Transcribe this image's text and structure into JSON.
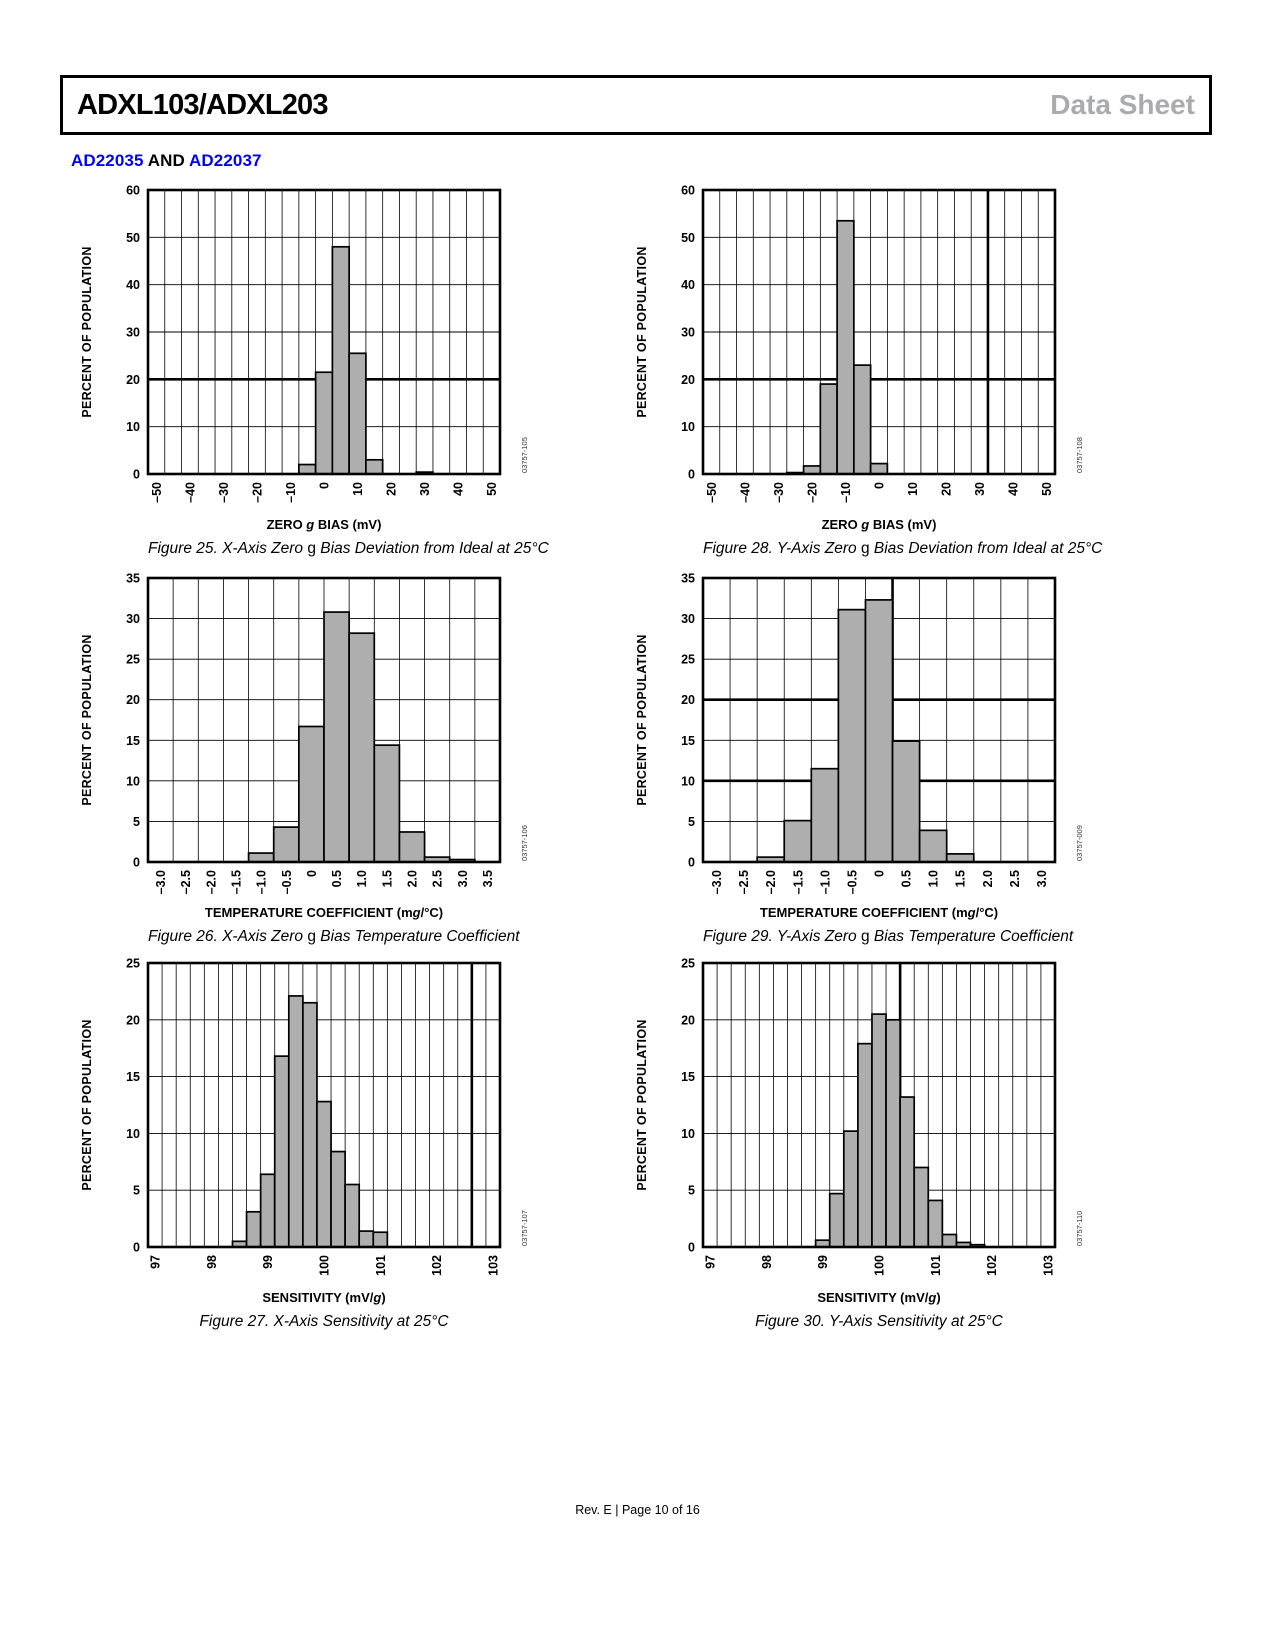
{
  "header": {
    "title": "ADXL103/ADXL203",
    "doc_type": "Data Sheet",
    "doc_type_color": "#a9abae"
  },
  "section_heading": {
    "link1": "AD22035",
    "and": " AND ",
    "link2": "AD22037",
    "link_color": "#0202ee"
  },
  "footer": {
    "text": "Rev. E | Page 10 of 16"
  },
  "chart_defaults": {
    "bar_fill": "#aeaeae",
    "bar_stroke": "#000000",
    "grid_color": "#000000",
    "ylabel": "PERCENT OF POPULATION"
  },
  "chart_data": [
    {
      "id": "figure-25",
      "type": "bar",
      "code": "03757-105",
      "ylabel": "PERCENT OF POPULATION",
      "xlabel_segments": [
        {
          "t": "ZERO "
        },
        {
          "t": "g",
          "i": true
        },
        {
          "t": " BIAS (mV)"
        }
      ],
      "caption_segments": [
        {
          "t": "Figure 25. X-Axis Zero ",
          "i": true
        },
        {
          "t": "g"
        },
        {
          "t": " Bias Deviation from Ideal at 25°C",
          "i": true
        }
      ],
      "xmin": -52.5,
      "xmax": 52.5,
      "xgrid": 5,
      "ymin": 0,
      "ymax": 60,
      "ystep": 10,
      "x_ticks": [
        {
          "v": -50,
          "label": "–50"
        },
        {
          "v": -40,
          "label": "–40"
        },
        {
          "v": -30,
          "label": "–30"
        },
        {
          "v": -20,
          "label": "–20"
        },
        {
          "v": -10,
          "label": "–10"
        },
        {
          "v": 0,
          "label": "0"
        },
        {
          "v": 10,
          "label": "10"
        },
        {
          "v": 20,
          "label": "20"
        },
        {
          "v": 30,
          "label": "30"
        },
        {
          "v": 40,
          "label": "40"
        },
        {
          "v": 50,
          "label": "50"
        }
      ],
      "bold_h": [
        20
      ],
      "bold_v": [],
      "bin_width": 5,
      "bars": [
        {
          "x": -5,
          "y": 2.0
        },
        {
          "x": 0,
          "y": 21.5
        },
        {
          "x": 5,
          "y": 48.0
        },
        {
          "x": 10,
          "y": 25.5
        },
        {
          "x": 15,
          "y": 3.0
        },
        {
          "x": 30,
          "y": 0.4
        }
      ]
    },
    {
      "id": "figure-28",
      "type": "bar",
      "code": "03757-108",
      "ylabel": "PERCENT OF POPULATION",
      "xlabel_segments": [
        {
          "t": "ZERO "
        },
        {
          "t": "g",
          "i": true
        },
        {
          "t": " BIAS (mV)"
        }
      ],
      "caption_segments": [
        {
          "t": "Figure 28. Y-Axis Zero ",
          "i": true
        },
        {
          "t": "g"
        },
        {
          "t": " Bias Deviation from Ideal at 25°C",
          "i": true
        }
      ],
      "xmin": -52.5,
      "xmax": 52.5,
      "xgrid": 5,
      "ymin": 0,
      "ymax": 60,
      "ystep": 10,
      "x_ticks": [
        {
          "v": -50,
          "label": "–50"
        },
        {
          "v": -40,
          "label": "–40"
        },
        {
          "v": -30,
          "label": "–30"
        },
        {
          "v": -20,
          "label": "–20"
        },
        {
          "v": -10,
          "label": "–10"
        },
        {
          "v": 0,
          "label": "0"
        },
        {
          "v": 10,
          "label": "10"
        },
        {
          "v": 20,
          "label": "20"
        },
        {
          "v": 30,
          "label": "30"
        },
        {
          "v": 40,
          "label": "40"
        },
        {
          "v": 50,
          "label": "50"
        }
      ],
      "bold_h": [
        20
      ],
      "bold_v": [
        32.5
      ],
      "bin_width": 5,
      "bars": [
        {
          "x": -25,
          "y": 0.3
        },
        {
          "x": -20,
          "y": 1.7
        },
        {
          "x": -15,
          "y": 19.0
        },
        {
          "x": -10,
          "y": 53.5
        },
        {
          "x": -5,
          "y": 23.0
        },
        {
          "x": 0,
          "y": 2.2
        }
      ]
    },
    {
      "id": "figure-26",
      "type": "bar",
      "code": "03757-106",
      "ylabel": "PERCENT OF POPULATION",
      "xlabel_segments": [
        {
          "t": "TEMPERATURE COEFFICIENT (m"
        },
        {
          "t": "g",
          "i": true
        },
        {
          "t": "/°C)"
        }
      ],
      "caption_segments": [
        {
          "t": "Figure 26. X-Axis Zero ",
          "i": true
        },
        {
          "t": "g"
        },
        {
          "t": " Bias Temperature Coefficient",
          "i": true
        }
      ],
      "xmin": -3.25,
      "xmax": 3.75,
      "xgrid": 0.5,
      "ymin": 0,
      "ymax": 35,
      "ystep": 5,
      "x_ticks": [
        {
          "v": -3.0,
          "label": "–3.0"
        },
        {
          "v": -2.5,
          "label": "–2.5"
        },
        {
          "v": -2.0,
          "label": "–2.0"
        },
        {
          "v": -1.5,
          "label": "–1.5"
        },
        {
          "v": -1.0,
          "label": "–1.0"
        },
        {
          "v": -0.5,
          "label": "–0.5"
        },
        {
          "v": 0,
          "label": "0"
        },
        {
          "v": 0.5,
          "label": "0.5"
        },
        {
          "v": 1.0,
          "label": "1.0"
        },
        {
          "v": 1.5,
          "label": "1.5"
        },
        {
          "v": 2.0,
          "label": "2.0"
        },
        {
          "v": 2.5,
          "label": "2.5"
        },
        {
          "v": 3.0,
          "label": "3.0"
        },
        {
          "v": 3.5,
          "label": "3.5"
        }
      ],
      "bold_h": [],
      "bold_v": [],
      "bin_width": 0.5,
      "bars": [
        {
          "x": -1.0,
          "y": 1.1
        },
        {
          "x": -0.5,
          "y": 4.3
        },
        {
          "x": 0,
          "y": 16.7
        },
        {
          "x": 0.5,
          "y": 30.8
        },
        {
          "x": 1.0,
          "y": 28.2
        },
        {
          "x": 1.5,
          "y": 14.4
        },
        {
          "x": 2.0,
          "y": 3.7
        },
        {
          "x": 2.5,
          "y": 0.6
        },
        {
          "x": 3.0,
          "y": 0.3
        }
      ]
    },
    {
      "id": "figure-29",
      "type": "bar",
      "code": "03757-009",
      "ylabel": "PERCENT OF POPULATION",
      "xlabel_segments": [
        {
          "t": "TEMPERATURE COEFFICIENT (m"
        },
        {
          "t": "g",
          "i": true
        },
        {
          "t": "/°C)"
        }
      ],
      "caption_segments": [
        {
          "t": "Figure 29. Y-Axis Zero ",
          "i": true
        },
        {
          "t": "g"
        },
        {
          "t": " Bias Temperature Coefficient",
          "i": true
        }
      ],
      "xmin": -3.25,
      "xmax": 3.25,
      "xgrid": 0.5,
      "ymin": 0,
      "ymax": 35,
      "ystep": 5,
      "x_ticks": [
        {
          "v": -3.0,
          "label": "–3.0"
        },
        {
          "v": -2.5,
          "label": "–2.5"
        },
        {
          "v": -2.0,
          "label": "–2.0"
        },
        {
          "v": -1.5,
          "label": "–1.5"
        },
        {
          "v": -1.0,
          "label": "–1.0"
        },
        {
          "v": -0.5,
          "label": "–0.5"
        },
        {
          "v": 0,
          "label": "0"
        },
        {
          "v": 0.5,
          "label": "0.5"
        },
        {
          "v": 1.0,
          "label": "1.0"
        },
        {
          "v": 1.5,
          "label": "1.5"
        },
        {
          "v": 2.0,
          "label": "2.0"
        },
        {
          "v": 2.5,
          "label": "2.5"
        },
        {
          "v": 3.0,
          "label": "3.0"
        }
      ],
      "bold_h": [
        10,
        20
      ],
      "bold_v": [
        0.25
      ],
      "bin_width": 0.5,
      "bars": [
        {
          "x": -2.0,
          "y": 0.6
        },
        {
          "x": -1.5,
          "y": 5.1
        },
        {
          "x": -1.0,
          "y": 11.5
        },
        {
          "x": -0.5,
          "y": 31.1
        },
        {
          "x": 0,
          "y": 32.3
        },
        {
          "x": 0.5,
          "y": 14.9
        },
        {
          "x": 1.0,
          "y": 3.9
        },
        {
          "x": 1.5,
          "y": 1.0
        }
      ]
    },
    {
      "id": "figure-27",
      "type": "bar",
      "code": "03757-107",
      "ylabel": "PERCENT OF POPULATION",
      "xlabel_segments": [
        {
          "t": "SENSITIVITY (mV/"
        },
        {
          "t": "g",
          "i": true
        },
        {
          "t": ")"
        }
      ],
      "caption_segments": [
        {
          "t": "Figure 27. X-Axis Sensitivity at 25°C",
          "i": true
        }
      ],
      "xmin": 96.875,
      "xmax": 103.125,
      "xgrid": 0.25,
      "ymin": 0,
      "ymax": 25,
      "ystep": 5,
      "x_ticks": [
        {
          "v": 97,
          "label": "97"
        },
        {
          "v": 98,
          "label": "98"
        },
        {
          "v": 99,
          "label": "99"
        },
        {
          "v": 100,
          "label": "100"
        },
        {
          "v": 101,
          "label": "101"
        },
        {
          "v": 102,
          "label": "102"
        },
        {
          "v": 103,
          "label": "103"
        }
      ],
      "bold_h": [],
      "bold_v": [
        102.625
      ],
      "bin_width": 0.25,
      "bars": [
        {
          "x": 98.5,
          "y": 0.5
        },
        {
          "x": 98.75,
          "y": 3.1
        },
        {
          "x": 99.0,
          "y": 6.4
        },
        {
          "x": 99.25,
          "y": 16.8
        },
        {
          "x": 99.5,
          "y": 22.1
        },
        {
          "x": 99.75,
          "y": 21.5
        },
        {
          "x": 100.0,
          "y": 12.8
        },
        {
          "x": 100.25,
          "y": 8.4
        },
        {
          "x": 100.5,
          "y": 5.5
        },
        {
          "x": 100.75,
          "y": 1.4
        },
        {
          "x": 101.0,
          "y": 1.3
        }
      ]
    },
    {
      "id": "figure-30",
      "type": "bar",
      "code": "03757-110",
      "ylabel": "PERCENT OF POPULATION",
      "xlabel_segments": [
        {
          "t": "SENSITIVITY (mV/"
        },
        {
          "t": "g",
          "i": true
        },
        {
          "t": ")"
        }
      ],
      "caption_segments": [
        {
          "t": "Figure 30. Y-Axis Sensitivity at 25°C",
          "i": true
        }
      ],
      "xmin": 96.875,
      "xmax": 103.125,
      "xgrid": 0.25,
      "ymin": 0,
      "ymax": 25,
      "ystep": 5,
      "x_ticks": [
        {
          "v": 97,
          "label": "97"
        },
        {
          "v": 98,
          "label": "98"
        },
        {
          "v": 99,
          "label": "99"
        },
        {
          "v": 100,
          "label": "100"
        },
        {
          "v": 101,
          "label": "101"
        },
        {
          "v": 102,
          "label": "102"
        },
        {
          "v": 103,
          "label": "103"
        }
      ],
      "bold_h": [],
      "bold_v": [
        100.375
      ],
      "bin_width": 0.25,
      "bars": [
        {
          "x": 99.0,
          "y": 0.6
        },
        {
          "x": 99.25,
          "y": 4.7
        },
        {
          "x": 99.5,
          "y": 10.2
        },
        {
          "x": 99.75,
          "y": 17.9
        },
        {
          "x": 100.0,
          "y": 20.5
        },
        {
          "x": 100.25,
          "y": 20.0
        },
        {
          "x": 100.5,
          "y": 13.2
        },
        {
          "x": 100.75,
          "y": 7.0
        },
        {
          "x": 101.0,
          "y": 4.1
        },
        {
          "x": 101.25,
          "y": 1.1
        },
        {
          "x": 101.5,
          "y": 0.4
        },
        {
          "x": 101.75,
          "y": 0.2
        }
      ]
    }
  ]
}
